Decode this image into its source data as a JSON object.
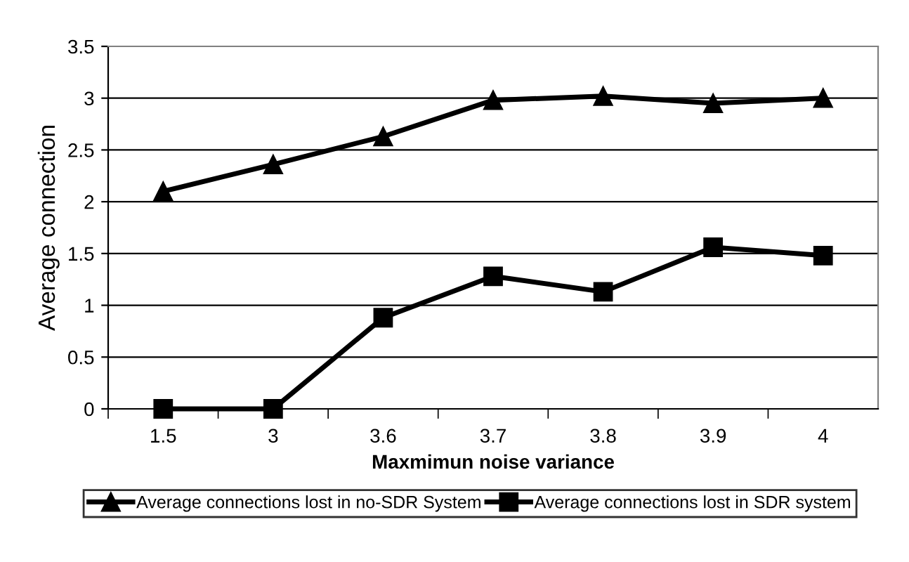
{
  "chart_data": {
    "type": "line",
    "xlabel": "Maxmimun noise variance",
    "ylabel": "Average connection",
    "categories": [
      "1.5",
      "3",
      "3.6",
      "3.7",
      "3.8",
      "3.9",
      "4"
    ],
    "series": [
      {
        "name": "Average connections lost in no-SDR System",
        "color": "#000000",
        "marker": "triangle",
        "values": [
          2.1,
          2.36,
          2.63,
          2.98,
          3.02,
          2.95,
          3.0
        ]
      },
      {
        "name": "Average connections lost in SDR system",
        "color": "#000000",
        "marker": "square",
        "values": [
          0,
          0,
          0.88,
          1.28,
          1.13,
          1.56,
          1.48
        ]
      }
    ],
    "ylim": [
      0,
      3.5
    ],
    "yticks": [
      0,
      0.5,
      1,
      1.5,
      2,
      2.5,
      3,
      3.5
    ],
    "grid": "y",
    "legend": "bottom",
    "line_style": "solid"
  }
}
